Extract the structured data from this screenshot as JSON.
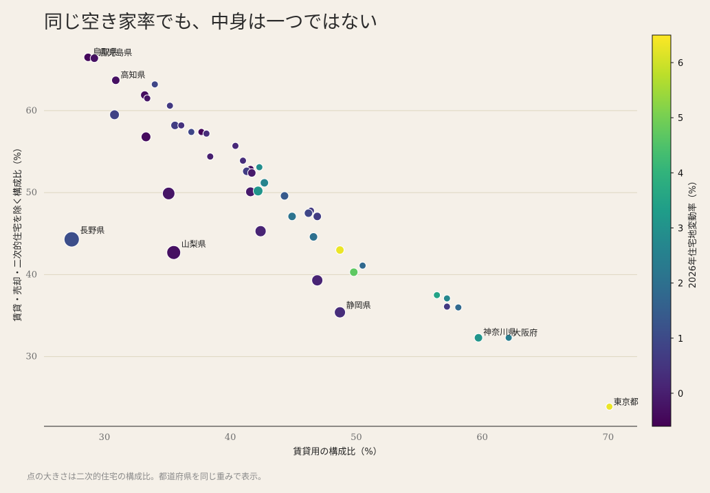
{
  "chart_data": {
    "type": "scatter",
    "title": "同じ空き家率でも、中身は一つではない",
    "xlabel": "賃貸用の構成比（%）",
    "ylabel": "賃貸・売却・二次的住宅を除く構成比（%）",
    "colorbar_label": "2026年住宅地変動率（%）",
    "caption": "点の大きさは二次的住宅の構成比。都道府県を同じ重みで表示。",
    "xlim": [
      25.2,
      72.3
    ],
    "ylim": [
      21.5,
      69.3
    ],
    "xticks": [
      30,
      40,
      50,
      60,
      70
    ],
    "yticks": [
      30,
      40,
      50,
      60
    ],
    "clim": [
      -0.6,
      6.5
    ],
    "cbticks": [
      0,
      1,
      2,
      3,
      4,
      5,
      6
    ],
    "colormap": "viridis",
    "grid": "horizontal",
    "points": [
      {
        "x": 28.7,
        "y": 66.5,
        "c": -0.45,
        "s": 6,
        "label": "鳥取県"
      },
      {
        "x": 29.2,
        "y": 66.4,
        "c": -0.3,
        "s": 6,
        "label": "鹿児島県"
      },
      {
        "x": 30.9,
        "y": 63.7,
        "c": -0.3,
        "s": 6,
        "label": "高知県"
      },
      {
        "x": 34.0,
        "y": 63.2,
        "c": 0.9,
        "s": 5,
        "label": ""
      },
      {
        "x": 33.2,
        "y": 61.9,
        "c": -0.35,
        "s": 6,
        "label": ""
      },
      {
        "x": 33.4,
        "y": 61.5,
        "c": -0.2,
        "s": 5,
        "label": ""
      },
      {
        "x": 35.2,
        "y": 60.6,
        "c": 0.6,
        "s": 5,
        "label": ""
      },
      {
        "x": 30.8,
        "y": 59.5,
        "c": 0.8,
        "s": 7,
        "label": ""
      },
      {
        "x": 35.6,
        "y": 58.2,
        "c": 0.7,
        "s": 6,
        "label": ""
      },
      {
        "x": 36.1,
        "y": 58.2,
        "c": 0.4,
        "s": 5,
        "label": ""
      },
      {
        "x": 36.9,
        "y": 57.4,
        "c": 0.9,
        "s": 5,
        "label": ""
      },
      {
        "x": 37.7,
        "y": 57.3,
        "c": 0.6,
        "s": 5,
        "label": ""
      },
      {
        "x": 37.7,
        "y": 57.4,
        "c": -0.5,
        "s": 5,
        "label": ""
      },
      {
        "x": 38.1,
        "y": 57.2,
        "c": 0.3,
        "s": 5,
        "label": ""
      },
      {
        "x": 33.3,
        "y": 56.8,
        "c": -0.4,
        "s": 7,
        "label": ""
      },
      {
        "x": 40.4,
        "y": 55.7,
        "c": 0.2,
        "s": 5,
        "label": ""
      },
      {
        "x": 38.4,
        "y": 54.4,
        "c": 0.0,
        "s": 5,
        "label": ""
      },
      {
        "x": 41.0,
        "y": 53.9,
        "c": 0.3,
        "s": 5,
        "label": ""
      },
      {
        "x": 42.3,
        "y": 53.1,
        "c": 2.9,
        "s": 5,
        "label": ""
      },
      {
        "x": 41.6,
        "y": 52.9,
        "c": -0.3,
        "s": 5,
        "label": ""
      },
      {
        "x": 41.3,
        "y": 52.6,
        "c": 0.7,
        "s": 6,
        "label": ""
      },
      {
        "x": 41.7,
        "y": 52.4,
        "c": -0.1,
        "s": 6,
        "label": ""
      },
      {
        "x": 42.7,
        "y": 51.2,
        "c": 2.6,
        "s": 6,
        "label": ""
      },
      {
        "x": 41.6,
        "y": 50.1,
        "c": -0.1,
        "s": 7,
        "label": ""
      },
      {
        "x": 42.2,
        "y": 50.2,
        "c": 3.1,
        "s": 7,
        "label": ""
      },
      {
        "x": 35.1,
        "y": 49.9,
        "c": -0.2,
        "s": 9,
        "label": ""
      },
      {
        "x": 44.3,
        "y": 49.6,
        "c": 1.4,
        "s": 6,
        "label": ""
      },
      {
        "x": 46.4,
        "y": 47.8,
        "c": 0.6,
        "s": 5,
        "label": ""
      },
      {
        "x": 46.2,
        "y": 47.5,
        "c": 0.9,
        "s": 6,
        "label": ""
      },
      {
        "x": 46.9,
        "y": 47.1,
        "c": 0.7,
        "s": 6,
        "label": ""
      },
      {
        "x": 44.9,
        "y": 47.1,
        "c": 2.1,
        "s": 6,
        "label": ""
      },
      {
        "x": 42.4,
        "y": 45.3,
        "c": 0.1,
        "s": 8,
        "label": ""
      },
      {
        "x": 46.6,
        "y": 44.6,
        "c": 2.0,
        "s": 6,
        "label": ""
      },
      {
        "x": 27.4,
        "y": 44.3,
        "c": 1.1,
        "s": 11,
        "label": "長野県"
      },
      {
        "x": 35.5,
        "y": 42.7,
        "c": -0.3,
        "s": 10,
        "label": "山梨県"
      },
      {
        "x": 48.7,
        "y": 43.0,
        "c": 6.3,
        "s": 6,
        "label": ""
      },
      {
        "x": 50.5,
        "y": 41.1,
        "c": 1.8,
        "s": 5,
        "label": ""
      },
      {
        "x": 49.8,
        "y": 40.3,
        "c": 4.7,
        "s": 6,
        "label": ""
      },
      {
        "x": 46.9,
        "y": 39.3,
        "c": 0.1,
        "s": 8,
        "label": ""
      },
      {
        "x": 56.4,
        "y": 37.5,
        "c": 3.5,
        "s": 5,
        "label": ""
      },
      {
        "x": 57.2,
        "y": 37.1,
        "c": 2.7,
        "s": 5,
        "label": ""
      },
      {
        "x": 57.2,
        "y": 36.1,
        "c": 0.6,
        "s": 5,
        "label": ""
      },
      {
        "x": 58.1,
        "y": 36.0,
        "c": 1.8,
        "s": 5,
        "label": ""
      },
      {
        "x": 48.7,
        "y": 35.4,
        "c": 0.3,
        "s": 8,
        "label": "静岡県"
      },
      {
        "x": 59.7,
        "y": 32.3,
        "c": 3.1,
        "s": 6,
        "label": "神奈川県"
      },
      {
        "x": 62.1,
        "y": 32.3,
        "c": 2.4,
        "s": 5,
        "label": "大阪府"
      },
      {
        "x": 70.1,
        "y": 23.9,
        "c": 6.3,
        "s": 5,
        "label": "東京都"
      }
    ]
  }
}
